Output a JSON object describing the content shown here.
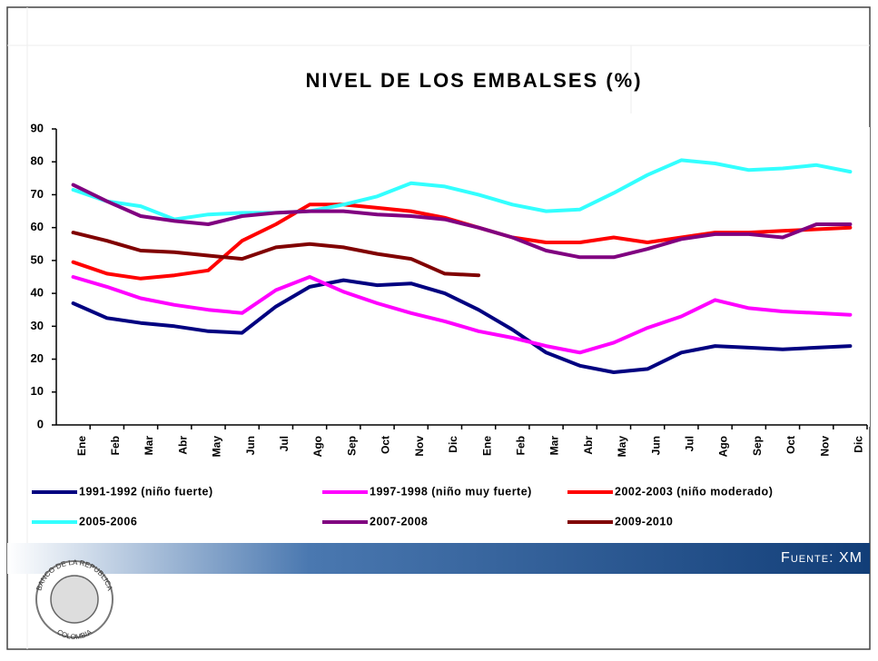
{
  "chart_data": {
    "type": "line",
    "title": "NIVEL DE LOS EMBALSES (%)",
    "categories": [
      "Ene",
      "Feb",
      "Mar",
      "Abr",
      "May",
      "Jun",
      "Jul",
      "Ago",
      "Sep",
      "Oct",
      "Nov",
      "Dic",
      "Ene",
      "Feb",
      "Mar",
      "Abr",
      "May",
      "Jun",
      "Jul",
      "Ago",
      "Sep",
      "Oct",
      "Nov",
      "Dic"
    ],
    "ylim": [
      0,
      90
    ],
    "yticks": [
      0,
      10,
      20,
      30,
      40,
      50,
      60,
      70,
      80,
      90
    ],
    "series": [
      {
        "name": "1991-1992 (niño fuerte)",
        "color": "#000080",
        "values": [
          37,
          32.5,
          31,
          30,
          28.5,
          28,
          36,
          42,
          44,
          42.5,
          43,
          40,
          35,
          29,
          22,
          18,
          16,
          17,
          22,
          24,
          23.5,
          23,
          23.5,
          24
        ]
      },
      {
        "name": "1997-1998 (niño muy fuerte)",
        "color": "#ff00ff",
        "values": [
          45,
          42,
          38.5,
          36.5,
          35,
          34,
          41,
          45,
          40.5,
          37,
          34,
          31.5,
          28.5,
          26.5,
          24,
          22,
          25,
          29.5,
          33,
          38,
          35.5,
          34.5,
          34,
          33.5
        ]
      },
      {
        "name": "2002-2003 (niño moderado)",
        "color": "#ff0000",
        "values": [
          49.5,
          46,
          44.5,
          45.5,
          47,
          56,
          61,
          67,
          67,
          66,
          65,
          63,
          60,
          57,
          55.5,
          55.5,
          57,
          55.5,
          57,
          58.5,
          58.5,
          59,
          59.5,
          60
        ]
      },
      {
        "name": "2005-2006",
        "color": "#33ffff",
        "values": [
          71.5,
          68,
          66.5,
          62.5,
          64,
          64.5,
          64.5,
          65,
          67,
          69.5,
          73.5,
          72.5,
          70,
          67,
          65,
          65.5,
          70.5,
          76,
          80.5,
          79.5,
          77.5,
          78,
          79,
          77
        ]
      },
      {
        "name": "2007-2008",
        "color": "#800080",
        "values": [
          73,
          68,
          63.5,
          62,
          61,
          63.5,
          64.5,
          65,
          65,
          64,
          63.5,
          62.5,
          60,
          57,
          53,
          51,
          51,
          53.5,
          56.5,
          58,
          58,
          57,
          61,
          61
        ]
      },
      {
        "name": "2009-2010",
        "color": "#800000",
        "values": [
          58.5,
          56,
          53,
          52.5,
          51.5,
          50.5,
          54,
          55,
          54,
          52,
          50.5,
          46,
          45.5,
          null,
          null,
          null,
          null,
          null,
          null,
          null,
          null,
          null,
          null,
          null
        ]
      }
    ]
  },
  "logo": {
    "top": "BANCO DE LA REPUBLICA",
    "bottom": "COLOMBIA"
  },
  "footer": "Fuente: XM"
}
